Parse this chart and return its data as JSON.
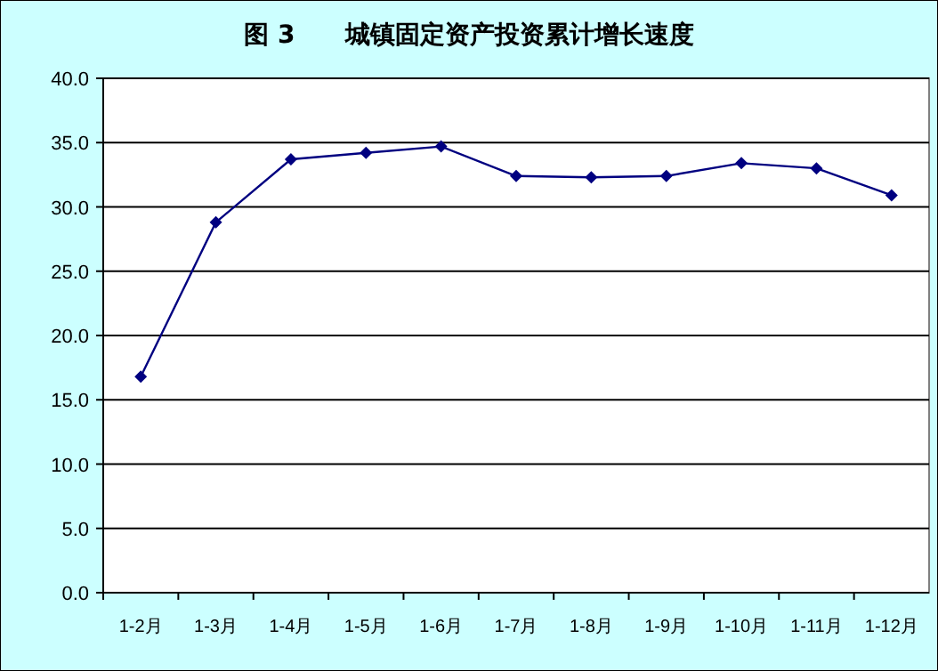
{
  "chart_data": {
    "type": "line",
    "title": "图 3　　城镇固定资产投资累计增长速度",
    "categories": [
      "1-2月",
      "1-3月",
      "1-4月",
      "1-5月",
      "1-6月",
      "1-7月",
      "1-8月",
      "1-9月",
      "1-10月",
      "1-11月",
      "1-12月"
    ],
    "values": [
      16.8,
      28.8,
      33.7,
      34.2,
      34.7,
      32.4,
      32.3,
      32.4,
      33.4,
      33.0,
      30.9
    ],
    "color": "#000080",
    "marker": "diamond",
    "line_style": "solid",
    "grid": "y",
    "ylim": [
      0,
      40
    ],
    "yticks": [
      {
        "value": 0,
        "label": "0.0"
      },
      {
        "value": 5,
        "label": "5.0"
      },
      {
        "value": 10,
        "label": "10.0"
      },
      {
        "value": 15,
        "label": "15.0"
      },
      {
        "value": 20,
        "label": "20.0"
      },
      {
        "value": 25,
        "label": "25.0"
      },
      {
        "value": 30,
        "label": "30.0"
      },
      {
        "value": 35,
        "label": "35.0"
      },
      {
        "value": 40,
        "label": "40.0"
      }
    ]
  }
}
